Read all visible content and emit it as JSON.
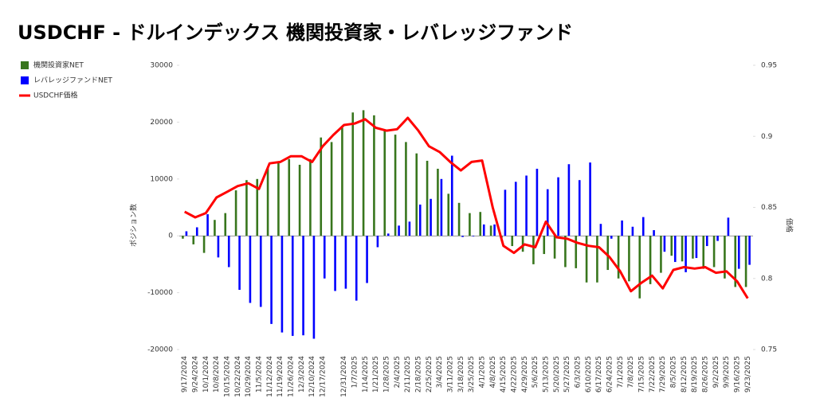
{
  "chart_data": {
    "type": "bar_line",
    "title": "USDCHF - ドルインデックス 機関投資家・レバレッジファンド",
    "y_axis_label": "ポジション数",
    "y2_axis_label": "価格",
    "categories": [
      "9/17/2024",
      "9/24/2024",
      "10/1/2024",
      "10/8/2024",
      "10/15/2024",
      "10/22/2024",
      "10/29/2024",
      "11/5/2024",
      "11/12/2024",
      "11/19/2024",
      "11/26/2024",
      "12/3/2024",
      "12/10/2024",
      "12/17/2024",
      null,
      "12/31/2024",
      "1/7/2025",
      "1/14/2025",
      "1/21/2025",
      "1/28/2025",
      "2/4/2025",
      "2/11/2025",
      "2/18/2025",
      "2/25/2025",
      "3/4/2025",
      "3/11/2025",
      "3/18/2025",
      "3/25/2025",
      "4/1/2025",
      "4/8/2025",
      "4/15/2025",
      "4/22/2025",
      "4/29/2025",
      "5/6/2025",
      "5/13/2025",
      "5/20/2025",
      "5/27/2025",
      "6/3/2025",
      "6/10/2025",
      "6/17/2025",
      "6/24/2025",
      "7/1/2025",
      "7/8/2025",
      "7/15/2025",
      "7/22/2025",
      "7/29/2025",
      "8/5/2025",
      "8/12/2025",
      "8/19/2025",
      "8/26/2025",
      "9/2/2025",
      "9/9/2025",
      "9/16/2025",
      "9/23/2025"
    ],
    "series": [
      {
        "name": "機関投資家NET",
        "color": "#38761d",
        "values": [
          -500,
          -1500,
          -3000,
          2800,
          4000,
          8000,
          9800,
          10000,
          12000,
          13000,
          13500,
          12500,
          13500,
          17300,
          16500,
          19000,
          21700,
          22100,
          21200,
          18500,
          17800,
          16500,
          14500,
          13200,
          11800,
          7400,
          5800,
          4000,
          4200,
          1800,
          -400,
          -1800,
          -2800,
          -5000,
          -3200,
          -4000,
          -5500,
          -5700,
          -8200,
          -8200,
          -6000,
          -7500,
          -8000,
          -11000,
          -8500,
          -6500,
          -3500,
          -4500,
          -4000,
          -5800,
          -5500,
          -7500,
          -9000,
          -9000
        ]
      },
      {
        "name": "レバレッジファンドNET",
        "color": "#0000ff",
        "values": [
          800,
          1500,
          3800,
          -3800,
          -5500,
          -9500,
          -11800,
          -12500,
          -15500,
          -17000,
          -17600,
          -17500,
          -18100,
          -7500,
          -9700,
          -9300,
          -11400,
          -8300,
          -2000,
          400,
          1800,
          2500,
          5500,
          6500,
          10000,
          14100,
          -200,
          -100,
          2000,
          2000,
          8100,
          9500,
          10600,
          11800,
          8200,
          10300,
          12600,
          9800,
          12900,
          2100,
          -500,
          2700,
          1600,
          3300,
          1000,
          -2800,
          -4600,
          -6400,
          -3900,
          -1800,
          -900,
          3200,
          -5800,
          -5100
        ]
      },
      {
        "name": "USDCHF価格",
        "color": "#ff0000",
        "axis": "y2",
        "values": [
          0.847,
          0.843,
          0.846,
          0.857,
          0.861,
          0.865,
          0.867,
          0.863,
          0.881,
          0.882,
          0.886,
          0.886,
          0.882,
          0.893,
          0.901,
          0.908,
          0.909,
          0.912,
          0.906,
          0.904,
          0.905,
          0.913,
          0.904,
          0.893,
          0.889,
          0.882,
          0.876,
          0.882,
          0.883,
          0.85,
          0.823,
          0.818,
          0.824,
          0.822,
          0.84,
          0.829,
          0.828,
          0.825,
          0.823,
          0.822,
          0.815,
          0.805,
          0.791,
          0.797,
          0.802,
          0.793,
          0.806,
          0.808,
          0.807,
          0.808,
          0.804,
          0.805,
          0.798,
          0.786
        ]
      }
    ],
    "ylim": [
      -20000,
      30000
    ],
    "yticks": [
      -20000,
      -10000,
      0,
      10000,
      20000,
      30000
    ],
    "y2lim": [
      0.75,
      0.95
    ],
    "y2ticks": [
      0.75,
      0.8,
      0.85,
      0.9,
      0.95
    ]
  }
}
